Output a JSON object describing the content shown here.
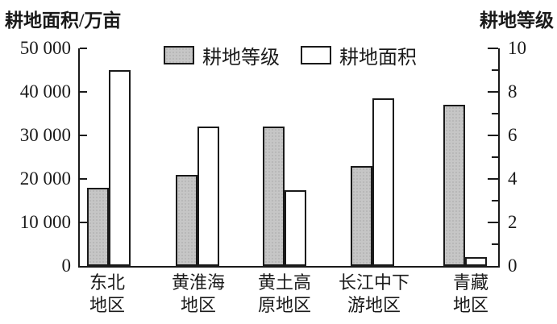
{
  "titles": {
    "left_axis_title": "耕地面积/万亩",
    "right_axis_title": "耕地等级"
  },
  "chart_data": {
    "type": "bar",
    "title": "",
    "categories": [
      "东北地区",
      "黄淮海地区",
      "黄土高原地区",
      "长江中下游地区",
      "青藏地区"
    ],
    "category_lines": [
      [
        "东北",
        "地区"
      ],
      [
        "黄淮海",
        "地区"
      ],
      [
        "黄土高",
        "原地区"
      ],
      [
        "长江中下",
        "游地区"
      ],
      [
        "青藏",
        "地区"
      ]
    ],
    "series": [
      {
        "name": "耕地等级",
        "axis": "right",
        "color": "#c6c6c6",
        "pattern": "halftone-dots",
        "values": [
          3.6,
          4.2,
          6.4,
          4.6,
          7.4
        ]
      },
      {
        "name": "耕地面积",
        "axis": "left",
        "color": "#ffffff",
        "pattern": "none",
        "values": [
          45000,
          32000,
          17500,
          38500,
          2000
        ]
      }
    ],
    "left_axis": {
      "title": "耕地面积/万亩",
      "unit": "万亩",
      "min": 0,
      "max": 50000,
      "tick_step": 10000,
      "tick_labels": [
        "0",
        "10 000",
        "20 000",
        "30 000",
        "40 000",
        "50 000"
      ]
    },
    "right_axis": {
      "title": "耕地等级",
      "min": 0,
      "max": 10,
      "tick_step": 2,
      "minor_tick_step": 1,
      "tick_labels": [
        "0",
        "2",
        "4",
        "6",
        "8",
        "10"
      ]
    },
    "grid": false,
    "legend_position": "top-center-inside",
    "colors": {
      "ink": "#1a1a1a",
      "background": "#ffffff"
    }
  }
}
